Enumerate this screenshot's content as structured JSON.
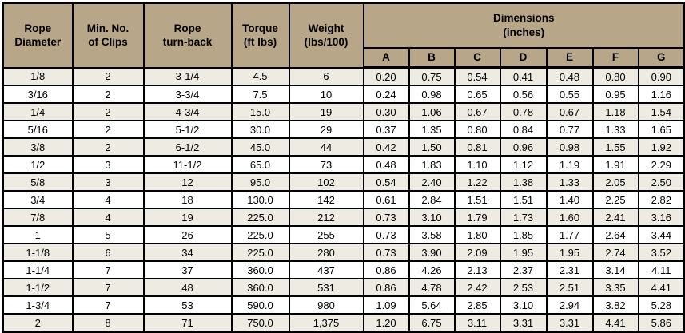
{
  "styles": {
    "header_bg": "#b8a688",
    "stripe_row_bg": "#eeebe3",
    "plain_row_bg": "#ffffff",
    "border_color": "#000000",
    "text_color": "#000000"
  },
  "chart_data": {
    "type": "table",
    "title": "",
    "columns": [
      "Rope\nDiameter",
      "Min. No.\nof Clips",
      "Rope\nturn-back",
      "Torque\n(ft lbs)",
      "Weight\n(lbs/100)"
    ],
    "group_header": {
      "label": "Dimensions\n(inches)",
      "subcolumns": [
        "A",
        "B",
        "C",
        "D",
        "E",
        "F",
        "G"
      ]
    },
    "rows": [
      [
        "1/8",
        "2",
        "3-1/4",
        "4.5",
        "6",
        "0.20",
        "0.75",
        "0.54",
        "0.41",
        "0.48",
        "0.80",
        "0.90"
      ],
      [
        "3/16",
        "2",
        "3-3/4",
        "7.5",
        "10",
        "0.24",
        "0.98",
        "0.65",
        "0.56",
        "0.55",
        "0.95",
        "1.16"
      ],
      [
        "1/4",
        "2",
        "4-3/4",
        "15.0",
        "19",
        "0.30",
        "1.06",
        "0.67",
        "0.78",
        "0.67",
        "1.18",
        "1.54"
      ],
      [
        "5/16",
        "2",
        "5-1/2",
        "30.0",
        "29",
        "0.37",
        "1.35",
        "0.80",
        "0.84",
        "0.77",
        "1.33",
        "1.65"
      ],
      [
        "3/8",
        "2",
        "6-1/2",
        "45.0",
        "44",
        "0.42",
        "1.50",
        "0.81",
        "0.96",
        "0.98",
        "1.55",
        "1.92"
      ],
      [
        "1/2",
        "3",
        "11-1/2",
        "65.0",
        "73",
        "0.48",
        "1.83",
        "1.10",
        "1.12",
        "1.19",
        "1.91",
        "2.29"
      ],
      [
        "5/8",
        "3",
        "12",
        "95.0",
        "102",
        "0.54",
        "2.40",
        "1.22",
        "1.38",
        "1.33",
        "2.05",
        "2.50"
      ],
      [
        "3/4",
        "4",
        "18",
        "130.0",
        "142",
        "0.61",
        "2.84",
        "1.51",
        "1.51",
        "1.40",
        "2.25",
        "2.82"
      ],
      [
        "7/8",
        "4",
        "19",
        "225.0",
        "212",
        "0.73",
        "3.10",
        "1.79",
        "1.73",
        "1.60",
        "2.41",
        "3.16"
      ],
      [
        "1",
        "5",
        "26",
        "225.0",
        "255",
        "0.73",
        "3.58",
        "1.80",
        "1.85",
        "1.77",
        "2.64",
        "3.44"
      ],
      [
        "1-1/8",
        "6",
        "34",
        "225.0",
        "280",
        "0.73",
        "3.90",
        "2.09",
        "1.95",
        "1.95",
        "2.74",
        "3.52"
      ],
      [
        "1-1/4",
        "7",
        "37",
        "360.0",
        "437",
        "0.86",
        "4.26",
        "2.13",
        "2.37",
        "2.31",
        "3.14",
        "4.11"
      ],
      [
        "1-1/2",
        "7",
        "48",
        "360.0",
        "531",
        "0.86",
        "4.78",
        "2.42",
        "2.53",
        "2.51",
        "3.35",
        "4.41"
      ],
      [
        "1-3/4",
        "7",
        "53",
        "590.0",
        "980",
        "1.09",
        "5.64",
        "2.85",
        "3.10",
        "2.94",
        "3.82",
        "5.28"
      ],
      [
        "2",
        "8",
        "71",
        "750.0",
        "1,375",
        "1.20",
        "6.75",
        "3.11",
        "3.31",
        "3.31",
        "4.41",
        "5.86"
      ]
    ]
  }
}
